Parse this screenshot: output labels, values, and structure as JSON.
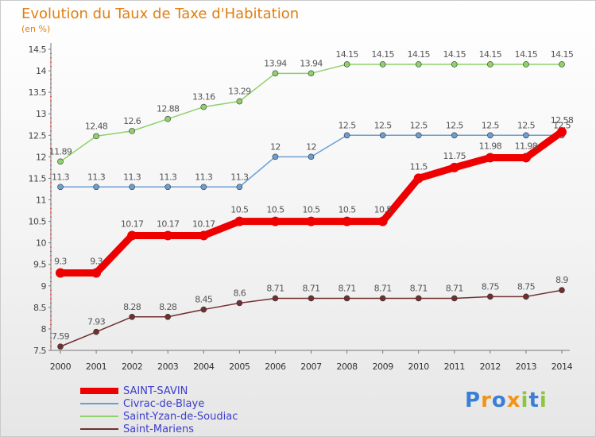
{
  "chart_data": {
    "type": "line",
    "title": "Evolution du Taux de Taxe d'Habitation",
    "subtitle": "(en %)",
    "categories": [
      "2000",
      "2001",
      "2002",
      "2003",
      "2004",
      "2005",
      "2006",
      "2007",
      "2008",
      "2009",
      "2010",
      "2011",
      "2012",
      "2013",
      "2014"
    ],
    "ylim": [
      7.5,
      14.5
    ],
    "yticks": [
      "7.5",
      "8",
      "8.5",
      "9",
      "9.5",
      "10",
      "10.5",
      "11",
      "11.5",
      "12",
      "12.5",
      "13",
      "13.5",
      "14",
      "14.5"
    ],
    "grid": false,
    "legend_position": "bottom-left",
    "series": [
      {
        "name": "Saint-Mariens",
        "color": "#722f2f",
        "values": [
          7.59,
          7.93,
          8.28,
          8.28,
          8.45,
          8.6,
          8.71,
          8.71,
          8.71,
          8.71,
          8.71,
          8.71,
          8.75,
          8.75,
          8.9
        ],
        "labels": [
          "7.59",
          "7.93",
          "8.28",
          "8.28",
          "8.45",
          "8.6",
          "8.71",
          "8.71",
          "8.71",
          "8.71",
          "8.71",
          "8.71",
          "8.75",
          "8.75",
          "8.9"
        ]
      },
      {
        "name": "Saint-Yzan-de-Soudiac",
        "color": "#8fd16a",
        "values": [
          11.89,
          12.48,
          12.6,
          12.88,
          13.16,
          13.29,
          13.94,
          13.94,
          14.15,
          14.15,
          14.15,
          14.15,
          14.15,
          14.15,
          14.15
        ],
        "labels": [
          "11.89",
          "12.48",
          "12.6",
          "12.88",
          "13.16",
          "13.29",
          "13.94",
          "13.94",
          "14.15",
          "14.15",
          "14.15",
          "14.15",
          "14.15",
          "14.15",
          "14.15"
        ]
      },
      {
        "name": "Civrac-de-Blaye",
        "color": "#6c9ed1",
        "values": [
          11.3,
          11.3,
          11.3,
          11.3,
          11.3,
          11.3,
          12,
          12,
          12.5,
          12.5,
          12.5,
          12.5,
          12.5,
          12.5,
          12.5
        ],
        "labels": [
          "11.3",
          "11.3",
          "11.3",
          "11.3",
          "11.3",
          "11.3",
          "12",
          "12",
          "12.5",
          "12.5",
          "12.5",
          "12.5",
          "12.5",
          "12.5",
          "12.5"
        ]
      },
      {
        "name": "SAINT-SAVIN",
        "color": "#ee0000",
        "values": [
          9.3,
          9.3,
          10.17,
          10.17,
          10.17,
          10.5,
          10.5,
          10.5,
          10.5,
          10.5,
          11.5,
          11.75,
          11.98,
          11.98,
          12.58
        ],
        "labels": [
          "9.3",
          "9.3",
          "10.17",
          "10.17",
          "10.17",
          "10.5",
          "10.5",
          "10.5",
          "10.5",
          "10.5",
          "11.5",
          "11.75",
          "11.98",
          "11.98",
          "12.58"
        ]
      }
    ]
  },
  "legend": [
    {
      "label": "SAINT-SAVIN",
      "color": "#ee0000"
    },
    {
      "label": "Civrac-de-Blaye",
      "color": "#6c9ed1"
    },
    {
      "label": "Saint-Yzan-de-Soudiac",
      "color": "#8fd16a"
    },
    {
      "label": "Saint-Mariens",
      "color": "#722f2f"
    }
  ],
  "logo": {
    "text": "Proxiti",
    "letters": [
      "P",
      "r",
      "o",
      "x",
      "i",
      "t",
      "i"
    ],
    "colors": [
      "#3a7fd5",
      "#f29318",
      "#3a7fd5",
      "#f29318",
      "#8cc63f",
      "#3a7fd5",
      "#8cc63f"
    ]
  }
}
